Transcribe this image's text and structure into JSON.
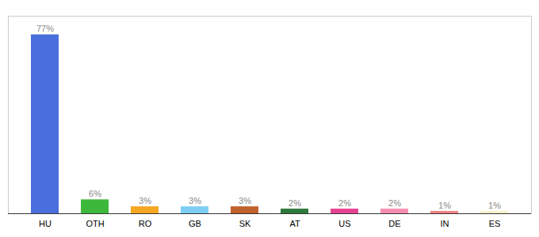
{
  "chart_data": {
    "type": "bar",
    "categories": [
      "HU",
      "OTH",
      "RO",
      "GB",
      "SK",
      "AT",
      "US",
      "DE",
      "IN",
      "ES"
    ],
    "values": [
      77,
      6,
      3,
      3,
      3,
      2,
      2,
      2,
      1,
      1
    ],
    "value_labels": [
      "77%",
      "6%",
      "3%",
      "3%",
      "3%",
      "2%",
      "2%",
      "2%",
      "1%",
      "1%"
    ],
    "colors": [
      "#4a6edb",
      "#3db83b",
      "#f5a623",
      "#7ecef4",
      "#c0622b",
      "#2d7a3a",
      "#e84393",
      "#f48fb1",
      "#f48080",
      "#f5f0c8"
    ],
    "ylim": [
      0,
      85
    ],
    "data_labels": true,
    "tick_labels": "x",
    "grid": false
  }
}
